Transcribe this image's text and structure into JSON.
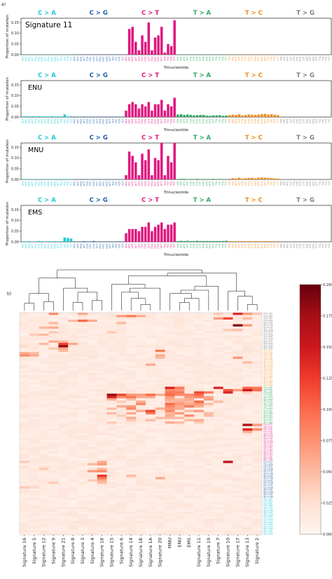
{
  "panels": [
    {
      "label": "a)"
    },
    {
      "label": "b)"
    }
  ],
  "colors": {
    "C>A": "#1fc8d6",
    "C>G": "#1c5fa8",
    "C>T": "#e0177f",
    "T>A": "#2aa860",
    "T>C": "#f08c1e",
    "T>G": "#7d7d7d"
  },
  "chart_data": [
    {
      "type": "bar",
      "title": "Signature 11",
      "xlabel": "Trinucleotide",
      "ylabel": "Proportion of mutation",
      "yticks": [
        "0.00",
        "0.05",
        "0.10",
        "0.15"
      ],
      "ylim": [
        0,
        0.17
      ],
      "groups": [
        "C > A",
        "C > G",
        "C > T",
        "T > A",
        "T > C",
        "T > G"
      ],
      "contexts": [
        "A_A",
        "A_C",
        "A_G",
        "A_T",
        "C_A",
        "C_C",
        "C_G",
        "C_T",
        "G_A",
        "G_C",
        "G_G",
        "G_T",
        "T_A",
        "T_C",
        "T_G",
        "T_T"
      ],
      "values": [
        0.002,
        0.001,
        0.001,
        0.001,
        0.001,
        0.001,
        0.001,
        0.001,
        0.001,
        0.001,
        0.001,
        0.001,
        0.001,
        0.001,
        0.001,
        0.001,
        0.001,
        0.001,
        0.001,
        0.001,
        0.001,
        0.001,
        0.001,
        0.001,
        0.001,
        0.001,
        0.001,
        0.001,
        0.001,
        0.001,
        0.001,
        0.001,
        0.002,
        0.12,
        0.13,
        0.06,
        0.02,
        0.09,
        0.06,
        0.15,
        0.02,
        0.08,
        0.09,
        0.13,
        0.01,
        0.05,
        0.04,
        0.16,
        0.001,
        0.001,
        0.001,
        0.001,
        0.001,
        0.001,
        0.001,
        0.001,
        0.001,
        0.001,
        0.001,
        0.001,
        0.001,
        0.001,
        0.001,
        0.001,
        0.001,
        0.001,
        0.001,
        0.001,
        0.001,
        0.001,
        0.001,
        0.001,
        0.001,
        0.001,
        0.001,
        0.001,
        0.001,
        0.001,
        0.001,
        0.001,
        0.001,
        0.001,
        0.001,
        0.001,
        0.001,
        0.001,
        0.001,
        0.001,
        0.001,
        0.001,
        0.001,
        0.001,
        0.001,
        0.001,
        0.001,
        0.001
      ]
    },
    {
      "type": "bar",
      "title": "ENU",
      "xlabel": "Trinucleotide",
      "ylabel": "Proportion of mutation",
      "yticks": [
        "0.00",
        "0.05",
        "0.10",
        "0.15"
      ],
      "ylim": [
        0,
        0.17
      ],
      "groups": [
        "C > A",
        "C > G",
        "C > T",
        "T > A",
        "T > C",
        "T > G"
      ],
      "values": [
        0.003,
        0.004,
        0.003,
        0.004,
        0.003,
        0.004,
        0.003,
        0.003,
        0.003,
        0.004,
        0.003,
        0.003,
        0.003,
        0.012,
        0.003,
        0.004,
        0.002,
        0.002,
        0.002,
        0.002,
        0.002,
        0.002,
        0.002,
        0.002,
        0.002,
        0.002,
        0.002,
        0.002,
        0.002,
        0.002,
        0.002,
        0.002,
        0.03,
        0.06,
        0.07,
        0.06,
        0.04,
        0.06,
        0.05,
        0.07,
        0.03,
        0.06,
        0.06,
        0.08,
        0.03,
        0.06,
        0.05,
        0.09,
        0.012,
        0.013,
        0.01,
        0.012,
        0.01,
        0.008,
        0.009,
        0.01,
        0.01,
        0.007,
        0.006,
        0.008,
        0.008,
        0.009,
        0.006,
        0.007,
        0.009,
        0.011,
        0.01,
        0.013,
        0.008,
        0.01,
        0.012,
        0.011,
        0.01,
        0.012,
        0.014,
        0.015,
        0.012,
        0.013,
        0.011,
        0.009,
        0.002,
        0.002,
        0.002,
        0.002,
        0.002,
        0.002,
        0.002,
        0.002,
        0.002,
        0.002,
        0.002,
        0.002,
        0.002,
        0.002,
        0.002,
        0.002
      ]
    },
    {
      "type": "bar",
      "title": "MNU",
      "xlabel": "Trinucleotide",
      "ylabel": "Proportion of mutation",
      "yticks": [
        "0.00",
        "0.05",
        "0.10",
        "0.15"
      ],
      "ylim": [
        0,
        0.17
      ],
      "groups": [
        "C > A",
        "C > G",
        "C > T",
        "T > A",
        "T > C",
        "T > G"
      ],
      "values": [
        0.002,
        0.002,
        0.002,
        0.002,
        0.002,
        0.002,
        0.002,
        0.002,
        0.002,
        0.002,
        0.002,
        0.002,
        0.002,
        0.002,
        0.002,
        0.002,
        0.001,
        0.001,
        0.001,
        0.001,
        0.001,
        0.001,
        0.001,
        0.001,
        0.001,
        0.001,
        0.001,
        0.001,
        0.001,
        0.001,
        0.001,
        0.001,
        0.02,
        0.13,
        0.11,
        0.08,
        0.02,
        0.12,
        0.09,
        0.14,
        0.02,
        0.1,
        0.09,
        0.17,
        0.02,
        0.11,
        0.08,
        0.17,
        0.002,
        0.003,
        0.003,
        0.002,
        0.002,
        0.002,
        0.003,
        0.002,
        0.002,
        0.002,
        0.002,
        0.003,
        0.002,
        0.002,
        0.002,
        0.002,
        0.003,
        0.006,
        0.005,
        0.008,
        0.004,
        0.006,
        0.007,
        0.008,
        0.005,
        0.008,
        0.009,
        0.008,
        0.007,
        0.006,
        0.005,
        0.004,
        0.001,
        0.001,
        0.001,
        0.001,
        0.001,
        0.001,
        0.001,
        0.001,
        0.001,
        0.001,
        0.001,
        0.001,
        0.001,
        0.001,
        0.001,
        0.001
      ]
    },
    {
      "type": "bar",
      "title": "EMS",
      "xlabel": "Trinucleotide",
      "ylabel": "Proportion of mutation",
      "yticks": [
        "0.00",
        "0.05",
        "0.10",
        "0.15"
      ],
      "ylim": [
        0,
        0.17
      ],
      "groups": [
        "C > A",
        "C > G",
        "C > T",
        "T > A",
        "T > C",
        "T > G"
      ],
      "values": [
        0.002,
        0.002,
        0.003,
        0.002,
        0.002,
        0.004,
        0.003,
        0.002,
        0.003,
        0.002,
        0.003,
        0.002,
        0.003,
        0.02,
        0.018,
        0.015,
        0.002,
        0.002,
        0.002,
        0.003,
        0.002,
        0.002,
        0.004,
        0.002,
        0.002,
        0.002,
        0.002,
        0.002,
        0.002,
        0.002,
        0.002,
        0.002,
        0.04,
        0.06,
        0.06,
        0.06,
        0.05,
        0.07,
        0.07,
        0.09,
        0.05,
        0.07,
        0.08,
        0.09,
        0.06,
        0.08,
        0.08,
        0.09,
        0.004,
        0.005,
        0.004,
        0.005,
        0.004,
        0.004,
        0.005,
        0.004,
        0.004,
        0.004,
        0.004,
        0.004,
        0.004,
        0.004,
        0.004,
        0.005,
        0.003,
        0.003,
        0.003,
        0.003,
        0.003,
        0.003,
        0.003,
        0.003,
        0.003,
        0.003,
        0.003,
        0.003,
        0.003,
        0.003,
        0.003,
        0.003,
        0.002,
        0.002,
        0.002,
        0.002,
        0.002,
        0.002,
        0.002,
        0.002,
        0.002,
        0.002,
        0.002,
        0.002,
        0.002,
        0.002,
        0.002,
        0.002
      ]
    },
    {
      "type": "heatmap",
      "columns": [
        "Signature 16",
        "Signature 5",
        "Signature 12",
        "Signature 9",
        "Signature 21",
        "Signature 8",
        "Signature 3",
        "Signature 4",
        "Signature 18",
        "Signature 15",
        "Signature 6",
        "Signature 14",
        "Signature 1B",
        "Signature 1A",
        "Signature 20",
        "MNU",
        "ENU",
        "EMS",
        "Signature 11",
        "Signature 19",
        "Signature 7",
        "Signature 10",
        "Signature 17",
        "Signature 13",
        "Signature 2"
      ],
      "row_groups": [
        "T > G",
        "T > C",
        "T > A",
        "C > T",
        "C > G",
        "C > A"
      ],
      "rows_per_group": 16,
      "colorbar_ticks": [
        "0.000",
        "0.025",
        "0.050",
        "0.075",
        "0.100",
        "0.125",
        "0.150",
        "0.175",
        "0.200"
      ],
      "vmin": 0,
      "vmax": 0.2,
      "base_level": 0.015,
      "cells": [
        [
          0,
          3,
          0.08
        ],
        [
          0,
          6,
          0.06
        ],
        [
          0,
          20,
          0.04
        ],
        [
          0,
          22,
          0.14
        ],
        [
          0,
          23,
          0.07
        ],
        [
          0,
          24,
          0.04
        ],
        [
          1,
          10,
          0.07
        ],
        [
          1,
          11,
          0.09
        ],
        [
          1,
          12,
          0.06
        ],
        [
          2,
          21,
          0.12
        ],
        [
          2,
          20,
          0.07
        ],
        [
          2,
          23,
          0.05
        ],
        [
          3,
          6,
          0.1
        ],
        [
          3,
          5,
          0.05
        ],
        [
          3,
          7,
          0.06
        ],
        [
          4,
          3,
          0.05
        ],
        [
          4,
          10,
          0.05
        ],
        [
          5,
          22,
          0.19
        ],
        [
          5,
          23,
          0.07
        ],
        [
          6,
          3,
          0.06
        ],
        [
          6,
          2,
          0.05
        ],
        [
          7,
          21,
          0.04
        ],
        [
          7,
          22,
          0.05
        ],
        [
          8,
          3,
          0.04
        ],
        [
          8,
          9,
          0.04
        ],
        [
          9,
          1,
          0.04
        ],
        [
          9,
          2,
          0.05
        ],
        [
          12,
          3,
          0.06
        ],
        [
          12,
          4,
          0.05
        ],
        [
          13,
          2,
          0.05
        ],
        [
          13,
          4,
          0.12
        ],
        [
          13,
          5,
          0.06
        ],
        [
          14,
          4,
          0.18
        ],
        [
          14,
          0,
          0.03
        ],
        [
          15,
          4,
          0.06
        ],
        [
          15,
          3,
          0.04
        ],
        [
          16,
          14,
          0.09
        ],
        [
          16,
          4,
          0.05
        ],
        [
          17,
          1,
          0.05
        ],
        [
          17,
          0,
          0.06
        ],
        [
          18,
          0,
          0.08
        ],
        [
          18,
          1,
          0.06
        ],
        [
          18,
          14,
          0.06
        ],
        [
          19,
          14,
          0.05
        ],
        [
          19,
          22,
          0.07
        ],
        [
          21,
          23,
          0.05
        ],
        [
          22,
          13,
          0.06
        ],
        [
          32,
          15,
          0.14
        ],
        [
          32,
          16,
          0.09
        ],
        [
          32,
          20,
          0.14
        ],
        [
          32,
          23,
          0.1
        ],
        [
          32,
          24,
          0.09
        ],
        [
          33,
          15,
          0.08
        ],
        [
          33,
          16,
          0.07
        ],
        [
          33,
          21,
          0.11
        ],
        [
          33,
          22,
          0.07
        ],
        [
          33,
          23,
          0.15
        ],
        [
          33,
          24,
          0.1
        ],
        [
          34,
          15,
          0.09
        ],
        [
          34,
          16,
          0.09
        ],
        [
          34,
          18,
          0.12
        ],
        [
          34,
          19,
          0.09
        ],
        [
          34,
          21,
          0.14
        ],
        [
          34,
          23,
          0.04
        ],
        [
          35,
          9,
          0.18
        ],
        [
          35,
          10,
          0.12
        ],
        [
          35,
          11,
          0.07
        ],
        [
          35,
          12,
          0.07
        ],
        [
          35,
          13,
          0.1
        ],
        [
          35,
          14,
          0.06
        ],
        [
          35,
          15,
          0.1
        ],
        [
          35,
          16,
          0.08
        ],
        [
          35,
          17,
          0.08
        ],
        [
          35,
          18,
          0.1
        ],
        [
          36,
          9,
          0.14
        ],
        [
          36,
          10,
          0.08
        ],
        [
          36,
          11,
          0.09
        ],
        [
          36,
          12,
          0.06
        ],
        [
          36,
          13,
          0.06
        ],
        [
          36,
          15,
          0.07
        ],
        [
          36,
          17,
          0.07
        ],
        [
          36,
          18,
          0.08
        ],
        [
          36,
          19,
          0.06
        ],
        [
          37,
          9,
          0.06
        ],
        [
          37,
          11,
          0.05
        ],
        [
          37,
          15,
          0.06
        ],
        [
          37,
          16,
          0.05
        ],
        [
          37,
          17,
          0.06
        ],
        [
          37,
          19,
          0.07
        ],
        [
          38,
          10,
          0.04
        ],
        [
          38,
          12,
          0.06
        ],
        [
          38,
          15,
          0.05
        ],
        [
          38,
          16,
          0.06
        ],
        [
          38,
          17,
          0.05
        ],
        [
          38,
          18,
          0.1
        ],
        [
          38,
          20,
          0.05
        ],
        [
          39,
          12,
          0.08
        ],
        [
          39,
          15,
          0.1
        ],
        [
          39,
          16,
          0.07
        ],
        [
          39,
          17,
          0.06
        ],
        [
          39,
          18,
          0.07
        ],
        [
          39,
          19,
          0.05
        ],
        [
          40,
          10,
          0.06
        ],
        [
          40,
          11,
          0.07
        ],
        [
          40,
          15,
          0.08
        ],
        [
          40,
          16,
          0.06
        ],
        [
          40,
          17,
          0.09
        ],
        [
          40,
          18,
          0.06
        ],
        [
          41,
          9,
          0.05
        ],
        [
          41,
          11,
          0.08
        ],
        [
          41,
          14,
          0.06
        ],
        [
          41,
          15,
          0.07
        ],
        [
          41,
          16,
          0.06
        ],
        [
          42,
          13,
          0.12
        ],
        [
          42,
          12,
          0.06
        ],
        [
          42,
          15,
          0.08
        ],
        [
          42,
          17,
          0.05
        ],
        [
          42,
          18,
          0.07
        ],
        [
          43,
          9,
          0.05
        ],
        [
          43,
          11,
          0.06
        ],
        [
          43,
          13,
          0.09
        ],
        [
          43,
          15,
          0.05
        ],
        [
          43,
          16,
          0.07
        ],
        [
          43,
          19,
          0.05
        ],
        [
          44,
          10,
          0.04
        ],
        [
          44,
          15,
          0.06
        ],
        [
          44,
          17,
          0.08
        ],
        [
          44,
          19,
          0.05
        ],
        [
          45,
          11,
          0.06
        ],
        [
          45,
          14,
          0.05
        ],
        [
          45,
          15,
          0.05
        ],
        [
          45,
          16,
          0.05
        ],
        [
          46,
          11,
          0.04
        ],
        [
          46,
          13,
          0.05
        ],
        [
          46,
          17,
          0.05
        ],
        [
          46,
          18,
          0.06
        ],
        [
          47,
          9,
          0.04
        ],
        [
          47,
          15,
          0.06
        ],
        [
          47,
          16,
          0.05
        ],
        [
          47,
          18,
          0.04
        ],
        [
          48,
          23,
          0.17
        ],
        [
          48,
          24,
          0.07
        ],
        [
          50,
          23,
          0.14
        ],
        [
          50,
          24,
          0.08
        ],
        [
          51,
          23,
          0.06
        ],
        [
          64,
          8,
          0.06
        ],
        [
          64,
          21,
          0.16
        ],
        [
          64,
          0,
          0.04
        ],
        [
          65,
          8,
          0.07
        ],
        [
          65,
          7,
          0.05
        ],
        [
          67,
          8,
          0.05
        ],
        [
          67,
          2,
          0.04
        ],
        [
          68,
          8,
          0.08
        ],
        [
          68,
          7,
          0.07
        ],
        [
          70,
          8,
          0.13
        ],
        [
          70,
          11,
          0.05
        ],
        [
          71,
          8,
          0.09
        ],
        [
          71,
          14,
          0.06
        ],
        [
          72,
          8,
          0.06
        ],
        [
          72,
          7,
          0.04
        ],
        [
          73,
          8,
          0.05
        ],
        [
          73,
          3,
          0.04
        ],
        [
          75,
          0,
          0.04
        ],
        [
          75,
          1,
          0.03
        ]
      ]
    }
  ]
}
